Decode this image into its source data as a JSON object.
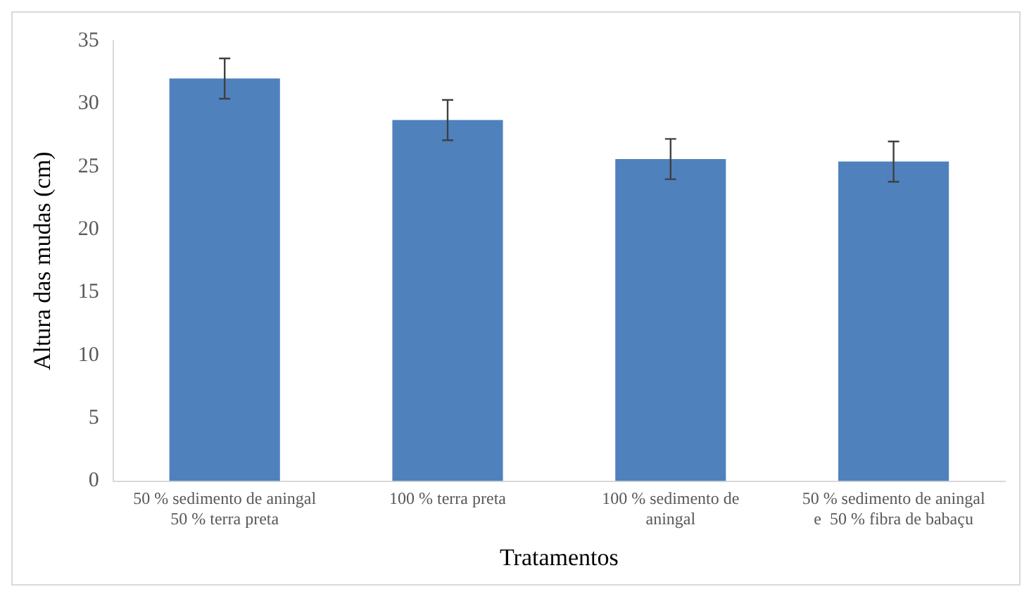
{
  "chart_data": {
    "type": "bar",
    "xlabel": "Tratamentos",
    "ylabel": "Altura das mudas (cm)",
    "categories": [
      "50 % sedimento de aningal 50 % terra preta",
      "100 % terra preta",
      "100 % sedimento de aningal",
      "50 % sedimento de aningal e  50 % fibra de babaçu"
    ],
    "values": [
      32.0,
      28.7,
      25.6,
      25.4
    ],
    "errors": [
      1.6,
      1.6,
      1.6,
      1.6
    ],
    "color": "#4f81bd",
    "ylim": [
      0,
      35
    ],
    "yticks": [
      0,
      5,
      10,
      15,
      20,
      25,
      30,
      35
    ],
    "grid": false,
    "legend": false
  }
}
